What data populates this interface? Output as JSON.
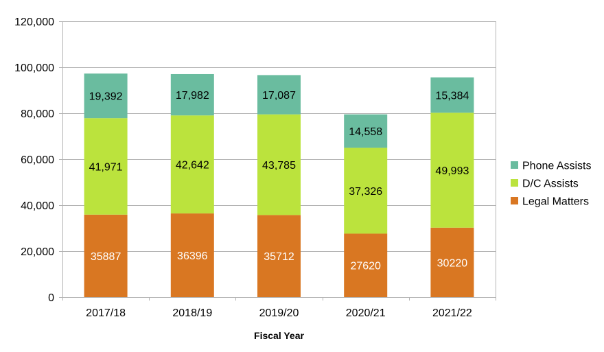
{
  "chart_data": {
    "type": "bar",
    "stacked": true,
    "title": "",
    "xlabel": "Fiscal Year",
    "ylabel": "",
    "ylim": [
      0,
      120000
    ],
    "yticks": [
      0,
      20000,
      40000,
      60000,
      80000,
      100000,
      120000
    ],
    "ytick_labels": [
      "0",
      "20,000",
      "40,000",
      "60,000",
      "80,000",
      "100,000",
      "120,000"
    ],
    "grid": true,
    "legend_position": "right",
    "categories": [
      "2017/18",
      "2018/19",
      "2019/20",
      "2020/21",
      "2021/22"
    ],
    "series": [
      {
        "name": "Legal Matters",
        "color": "#d97722",
        "label_color": "#ffffff",
        "values": [
          35887,
          36396,
          35712,
          27620,
          30220
        ],
        "labels": [
          "35887",
          "36396",
          "35712",
          "27620",
          "30220"
        ]
      },
      {
        "name": "D/C Assists",
        "color": "#bbe33d",
        "label_color": "#000000",
        "values": [
          41971,
          42642,
          43785,
          37326,
          49993
        ],
        "labels": [
          "41,971",
          "42,642",
          "43,785",
          "37,326",
          "49,993"
        ]
      },
      {
        "name": "Phone Assists",
        "color": "#6abc9f",
        "label_color": "#000000",
        "values": [
          19392,
          17982,
          17087,
          14558,
          15384
        ],
        "labels": [
          "19,392",
          "17,982",
          "17,087",
          "14,558",
          "15,384"
        ]
      }
    ],
    "legend_order": [
      "Phone Assists",
      "D/C Assists",
      "Legal Matters"
    ]
  }
}
